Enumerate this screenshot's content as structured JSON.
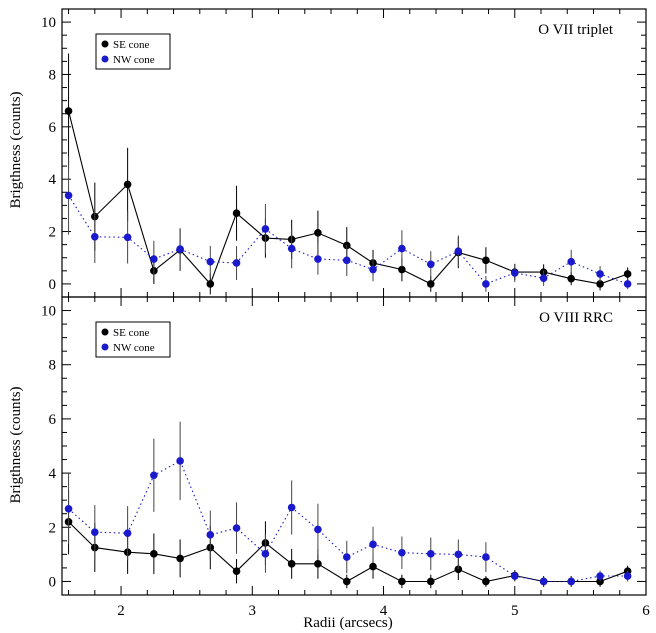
{
  "figure": {
    "xlabel": "Radii (arcsecs)",
    "ylabel": "Brigthness (counts)"
  },
  "chart_data": [
    {
      "type": "line",
      "title": "O VII triplet",
      "xlabel": "Radii (arcsecs)",
      "ylabel": "Brigthness (counts)",
      "xlim": [
        1.55,
        6.0
      ],
      "ylim": [
        -0.5,
        10.5
      ],
      "xticks": [
        2,
        3,
        4,
        5,
        6
      ],
      "xtick_labels": [
        "",
        "",
        "",
        "",
        ""
      ],
      "yticks": [
        0,
        2,
        4,
        6,
        8,
        10
      ],
      "ytick_labels": [
        "0",
        "2",
        "4",
        "6",
        "8",
        "10"
      ],
      "legend_position": "top-left",
      "grid": false,
      "series": [
        {
          "name": "SE cone",
          "color": "#000000",
          "line_style": "solid",
          "x": [
            1.6,
            1.8,
            2.05,
            2.25,
            2.45,
            2.68,
            2.88,
            3.1,
            3.3,
            3.5,
            3.72,
            3.92,
            4.14,
            4.36,
            4.57,
            4.78,
            5.0,
            5.22,
            5.43,
            5.65,
            5.86
          ],
          "y": [
            6.6,
            2.57,
            3.8,
            0.5,
            1.3,
            0.0,
            2.7,
            1.75,
            1.7,
            1.95,
            1.47,
            0.8,
            0.55,
            0.0,
            1.2,
            0.9,
            0.45,
            0.45,
            0.2,
            0.0,
            0.38
          ],
          "err": [
            2.2,
            1.3,
            1.4,
            0.5,
            0.8,
            0.4,
            1.05,
            0.75,
            0.75,
            0.85,
            0.7,
            0.5,
            0.45,
            0.3,
            0.6,
            0.5,
            0.3,
            0.3,
            0.25,
            0.25,
            0.25
          ]
        },
        {
          "name": "NW cone",
          "color": "#1a1acc",
          "line_style": "dotted",
          "x": [
            1.6,
            1.8,
            2.05,
            2.25,
            2.45,
            2.68,
            2.88,
            3.1,
            3.3,
            3.5,
            3.72,
            3.92,
            4.14,
            4.36,
            4.57,
            4.78,
            5.0,
            5.22,
            5.43,
            5.65,
            5.86
          ],
          "y": [
            3.38,
            1.8,
            1.78,
            0.95,
            1.33,
            0.85,
            0.8,
            2.1,
            1.35,
            0.95,
            0.9,
            0.55,
            1.35,
            0.75,
            1.25,
            0.0,
            0.42,
            0.22,
            0.85,
            0.38,
            0.0
          ],
          "err": [
            1.5,
            1.0,
            1.0,
            0.7,
            0.8,
            0.6,
            0.65,
            0.95,
            0.75,
            0.6,
            0.6,
            0.45,
            0.7,
            0.5,
            0.6,
            0.3,
            0.35,
            0.3,
            0.45,
            0.3,
            0.2
          ]
        }
      ]
    },
    {
      "type": "line",
      "title": "O VIII RRC",
      "xlabel": "Radii (arcsecs)",
      "ylabel": "Brigthness (counts)",
      "xlim": [
        1.55,
        6.0
      ],
      "ylim": [
        -0.5,
        10.5
      ],
      "xticks": [
        2,
        3,
        4,
        5,
        6
      ],
      "xtick_labels": [
        "2",
        "3",
        "4",
        "5",
        "6"
      ],
      "yticks": [
        0,
        2,
        4,
        6,
        8,
        10
      ],
      "ytick_labels": [
        "0",
        "2",
        "4",
        "6",
        "8",
        "10"
      ],
      "legend_position": "top-left",
      "grid": false,
      "series": [
        {
          "name": "SE cone",
          "color": "#000000",
          "line_style": "solid",
          "x": [
            1.6,
            1.8,
            2.05,
            2.25,
            2.45,
            2.68,
            2.88,
            3.1,
            3.3,
            3.5,
            3.72,
            3.92,
            4.14,
            4.36,
            4.57,
            4.78,
            5.0,
            5.22,
            5.43,
            5.65,
            5.86
          ],
          "y": [
            2.2,
            1.25,
            1.08,
            1.02,
            0.85,
            1.25,
            0.38,
            1.42,
            0.65,
            0.65,
            0.0,
            0.55,
            0.0,
            0.0,
            0.45,
            0.0,
            0.22,
            0.0,
            0.0,
            0.0,
            0.38
          ],
          "err": [
            1.2,
            0.9,
            0.8,
            0.75,
            0.7,
            0.8,
            0.45,
            0.8,
            0.55,
            0.55,
            0.25,
            0.45,
            0.25,
            0.25,
            0.4,
            0.2,
            0.2,
            0.2,
            0.2,
            0.2,
            0.2
          ]
        },
        {
          "name": "NW cone",
          "color": "#1a1acc",
          "line_style": "dotted",
          "x": [
            1.6,
            1.8,
            2.05,
            2.25,
            2.45,
            2.68,
            2.88,
            3.1,
            3.3,
            3.5,
            3.72,
            3.92,
            4.14,
            4.36,
            4.57,
            4.78,
            5.0,
            5.22,
            5.43,
            5.65,
            5.86
          ],
          "y": [
            2.68,
            1.82,
            1.78,
            3.92,
            4.45,
            1.72,
            1.97,
            1.02,
            2.73,
            1.92,
            0.9,
            1.37,
            1.06,
            1.02,
            1.0,
            0.9,
            0.2,
            0.0,
            0.0,
            0.2,
            0.2
          ],
          "err": [
            1.3,
            1.0,
            1.0,
            1.35,
            1.45,
            0.9,
            0.95,
            0.7,
            1.0,
            0.95,
            0.6,
            0.65,
            0.6,
            0.6,
            0.55,
            0.55,
            0.2,
            0.15,
            0.15,
            0.2,
            0.2
          ]
        }
      ]
    }
  ]
}
